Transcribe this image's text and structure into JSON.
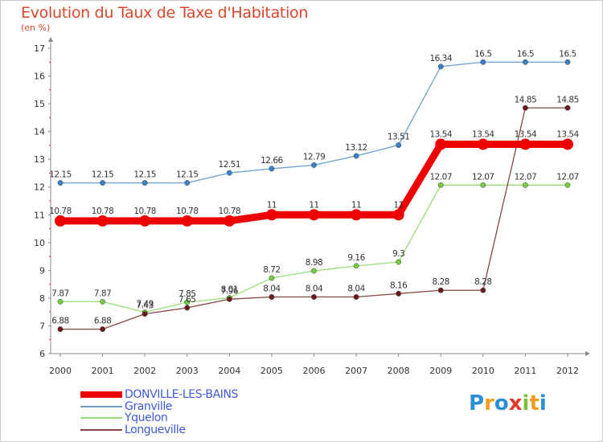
{
  "title": "Evolution du Taux de Taxe d'Habitation",
  "subtitle": "(en %)",
  "logo": {
    "letters": [
      "P",
      "r",
      "o",
      "x",
      "i",
      "t",
      "i"
    ],
    "colors": [
      "#2b8fd6",
      "#f0a020",
      "#2b8fd6",
      "#e23a2a",
      "#7bbf3a",
      "#f0a020",
      "#2b8fd6"
    ]
  },
  "chart_data": {
    "type": "line",
    "x": [
      2000,
      2001,
      2002,
      2003,
      2004,
      2005,
      2006,
      2007,
      2008,
      2009,
      2010,
      2011,
      2012
    ],
    "ylim": [
      6,
      17
    ],
    "yticks": [
      6,
      7,
      8,
      9,
      10,
      11,
      12,
      13,
      14,
      15,
      16,
      17
    ],
    "grid": false,
    "legend_placement": "bottom-left",
    "series": [
      {
        "name": "DONVILLE-LES-BAINS",
        "color": "#ee0000",
        "values": [
          10.78,
          10.78,
          10.78,
          10.78,
          10.78,
          11,
          11,
          11,
          11,
          13.54,
          13.54,
          13.54,
          13.54
        ],
        "labels": [
          "10.78",
          "10.78",
          "10.78",
          "10.78",
          "10.78",
          "11",
          "11",
          "11",
          "11",
          "13.54",
          "13.54",
          "13.54",
          "13.54"
        ]
      },
      {
        "name": "Granville",
        "color": "#6fa0cc",
        "marker": "#3a82c4",
        "values": [
          12.15,
          12.15,
          12.15,
          12.15,
          12.51,
          12.66,
          12.79,
          13.12,
          13.51,
          16.34,
          16.5,
          16.5,
          16.5
        ],
        "labels": [
          "12.15",
          "12.15",
          "12.15",
          "12.15",
          "12.51",
          "12.66",
          "12.79",
          "13.12",
          "13.51",
          "16.34",
          "16.5",
          "16.5",
          "16.5"
        ]
      },
      {
        "name": "Yquelon",
        "color": "#99dd77",
        "marker": "#77cc44",
        "values": [
          7.87,
          7.87,
          7.49,
          7.85,
          8.01,
          8.72,
          8.98,
          9.16,
          9.3,
          12.07,
          12.07,
          12.07,
          12.07
        ],
        "labels": [
          "7.87",
          "7.87",
          "7.49",
          "7.85",
          "8.01",
          "8.72",
          "8.98",
          "9.16",
          "9.3",
          "12.07",
          "12.07",
          "12.07",
          "12.07"
        ]
      },
      {
        "name": "Longueville",
        "color": "#884444",
        "marker": "#6a1a1a",
        "values": [
          6.88,
          6.88,
          7.43,
          7.65,
          7.96,
          8.04,
          8.04,
          8.04,
          8.16,
          8.28,
          8.28,
          14.85,
          14.85
        ],
        "labels": [
          "6.88",
          "6.88",
          "7.43",
          "7.65",
          "7.96",
          "8.04",
          "8.04",
          "8.04",
          "8.16",
          "8.28",
          "8.28",
          "14.85",
          "14.85"
        ]
      }
    ]
  }
}
